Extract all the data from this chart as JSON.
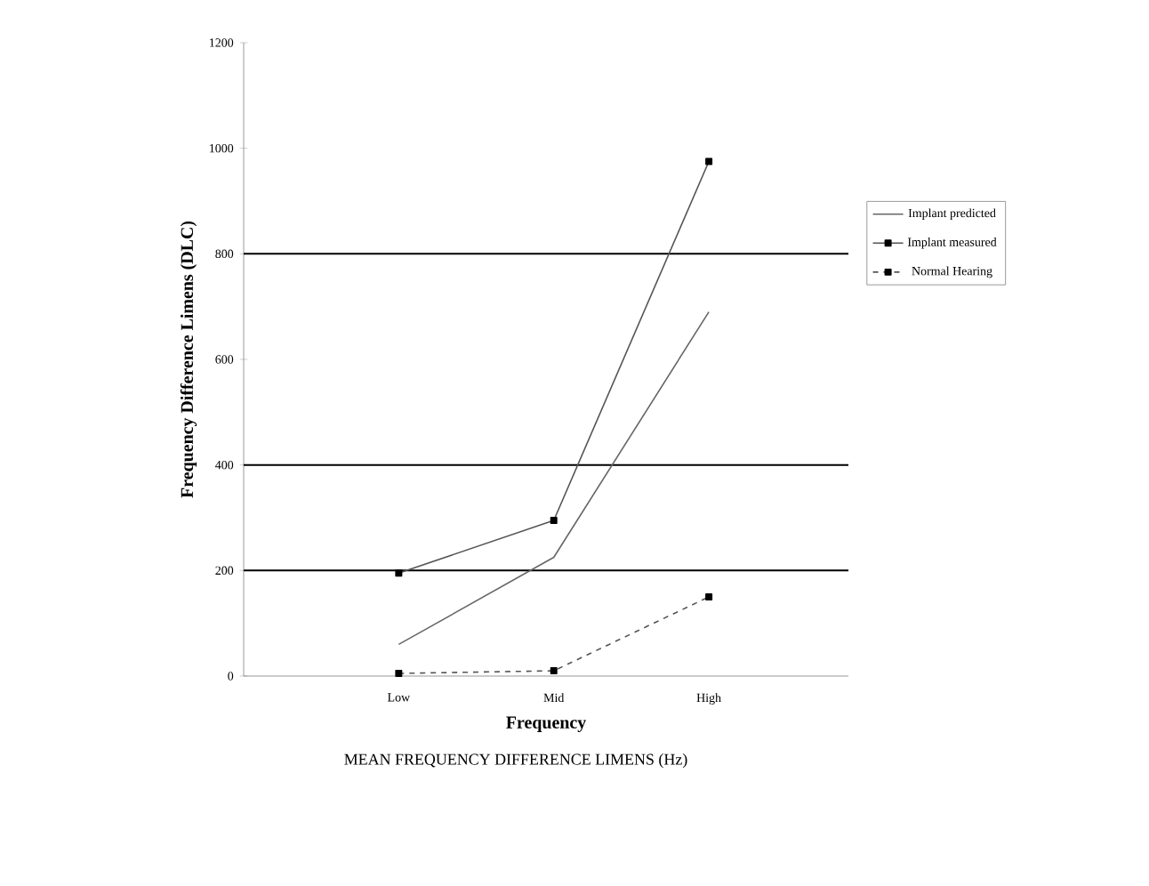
{
  "chart_data": {
    "type": "line",
    "title": "MEAN FREQUENCY DIFFERENCE LIMENS (Hz)",
    "xlabel": "Frequency",
    "ylabel": "Frequency Difference Limens (DLC)",
    "categories": [
      "Low",
      "Mid",
      "High"
    ],
    "series": [
      {
        "name": "Implant predicted",
        "color": "#666666",
        "values": [
          60,
          225,
          690
        ],
        "marker": "none",
        "line_style": "solid"
      },
      {
        "name": "Implant measured",
        "color": "#555555",
        "values": [
          195,
          295,
          975
        ],
        "marker": "square",
        "line_style": "solid"
      },
      {
        "name": "Normal Hearing",
        "color": "#555555",
        "values": [
          5,
          10,
          150
        ],
        "marker": "square",
        "line_style": "dashed"
      }
    ],
    "ylim": [
      0,
      1200
    ],
    "yticks": [
      0,
      200,
      400,
      600,
      800,
      1000,
      1200
    ],
    "ref_lines": [
      {
        "axis": "y",
        "value": 200,
        "color": "#000000"
      },
      {
        "axis": "y",
        "value": 400,
        "color": "#000000"
      },
      {
        "axis": "y",
        "value": 800,
        "color": "#000000"
      }
    ],
    "legend": "right",
    "grid": false
  }
}
